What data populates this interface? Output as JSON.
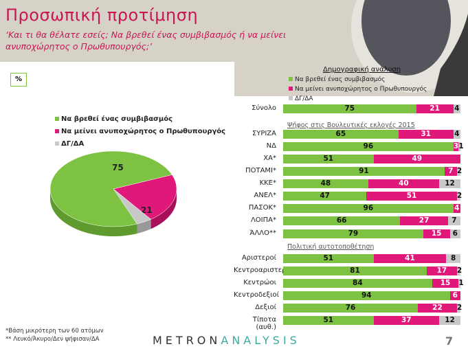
{
  "header": {
    "title": "Προσωπική προτίμηση",
    "subtitle": "‘Και τι θα θέλατε εσείς; Να βρεθεί ένας συμβιβασμός ή να μείνει ανυποχώρητος ο Πρωθυπουργός;’"
  },
  "unit_label": "%",
  "colors": {
    "green": "#7dc242",
    "pink": "#e0187a",
    "gray": "#c8c8c8",
    "title": "#c8174f"
  },
  "chart_data": [
    {
      "type": "pie",
      "legend_placement": "top-left",
      "categories": [
        "Να βρεθεί ένας συμβιβασμός",
        "Να μείνει ανυποχώρητος ο Πρωθυπουργός",
        "ΔΓ/ΔΑ"
      ],
      "values": [
        75,
        21,
        4
      ]
    },
    {
      "type": "bar",
      "stacked": true,
      "orientation": "horizontal",
      "title": "Δημογραφική ανάλυση",
      "legend_placement": "top",
      "series_names": [
        "Να βρεθεί ένας συμβιβασμός",
        "Να μείνει ανυποχώρητος ο Πρωθυπουργός",
        "ΔΓ/ΔΑ"
      ],
      "groups": [
        {
          "label": "",
          "rows": [
            {
              "label": "Σύνολο",
              "values": [
                75,
                21,
                4
              ]
            }
          ]
        },
        {
          "label": "Ψήφος στις Βουλευτικές εκλογές 2015",
          "rows": [
            {
              "label": "ΣΥΡΙΖΑ",
              "values": [
                65,
                31,
                4
              ]
            },
            {
              "label": "ΝΔ",
              "values": [
                96,
                3,
                1
              ]
            },
            {
              "label": "ΧΑ*",
              "values": [
                51,
                49,
                0
              ]
            },
            {
              "label": "ΠΟΤΑΜΙ*",
              "values": [
                91,
                7,
                2
              ]
            },
            {
              "label": "ΚΚΕ*",
              "values": [
                48,
                40,
                12
              ]
            },
            {
              "label": "ΑΝΕΛ*",
              "values": [
                47,
                51,
                2
              ]
            },
            {
              "label": "ΠΑΣΟΚ*",
              "values": [
                96,
                4,
                0
              ]
            },
            {
              "label": "ΛΟΙΠΑ*",
              "values": [
                66,
                27,
                7
              ]
            },
            {
              "label": "ΆΛΛΟ**",
              "values": [
                79,
                15,
                6
              ]
            }
          ]
        },
        {
          "label": "Πολιτική αυτοτοποθέτηση",
          "rows": [
            {
              "label": "Αριστεροί",
              "values": [
                51,
                41,
                8
              ]
            },
            {
              "label": "Κεντροαριστεροί",
              "values": [
                81,
                17,
                2
              ]
            },
            {
              "label": "Κεντρώοι",
              "values": [
                84,
                15,
                1
              ]
            },
            {
              "label": "Κεντροδεξιοί",
              "values": [
                94,
                6,
                0
              ]
            },
            {
              "label": "Δεξιοί",
              "values": [
                76,
                22,
                2
              ]
            },
            {
              "label": "Τίποτα (αυθ.)",
              "values": [
                51,
                37,
                12
              ]
            }
          ]
        }
      ]
    }
  ],
  "footnotes": [
    "*Βάση μικρότερη των 60 ατόμων",
    "** Λευκό/Άκυρο/Δεν ψήφισαν/ΔΑ"
  ],
  "logo": {
    "a": "METRON",
    "b": "ANALYSIS"
  },
  "page_number": "7"
}
